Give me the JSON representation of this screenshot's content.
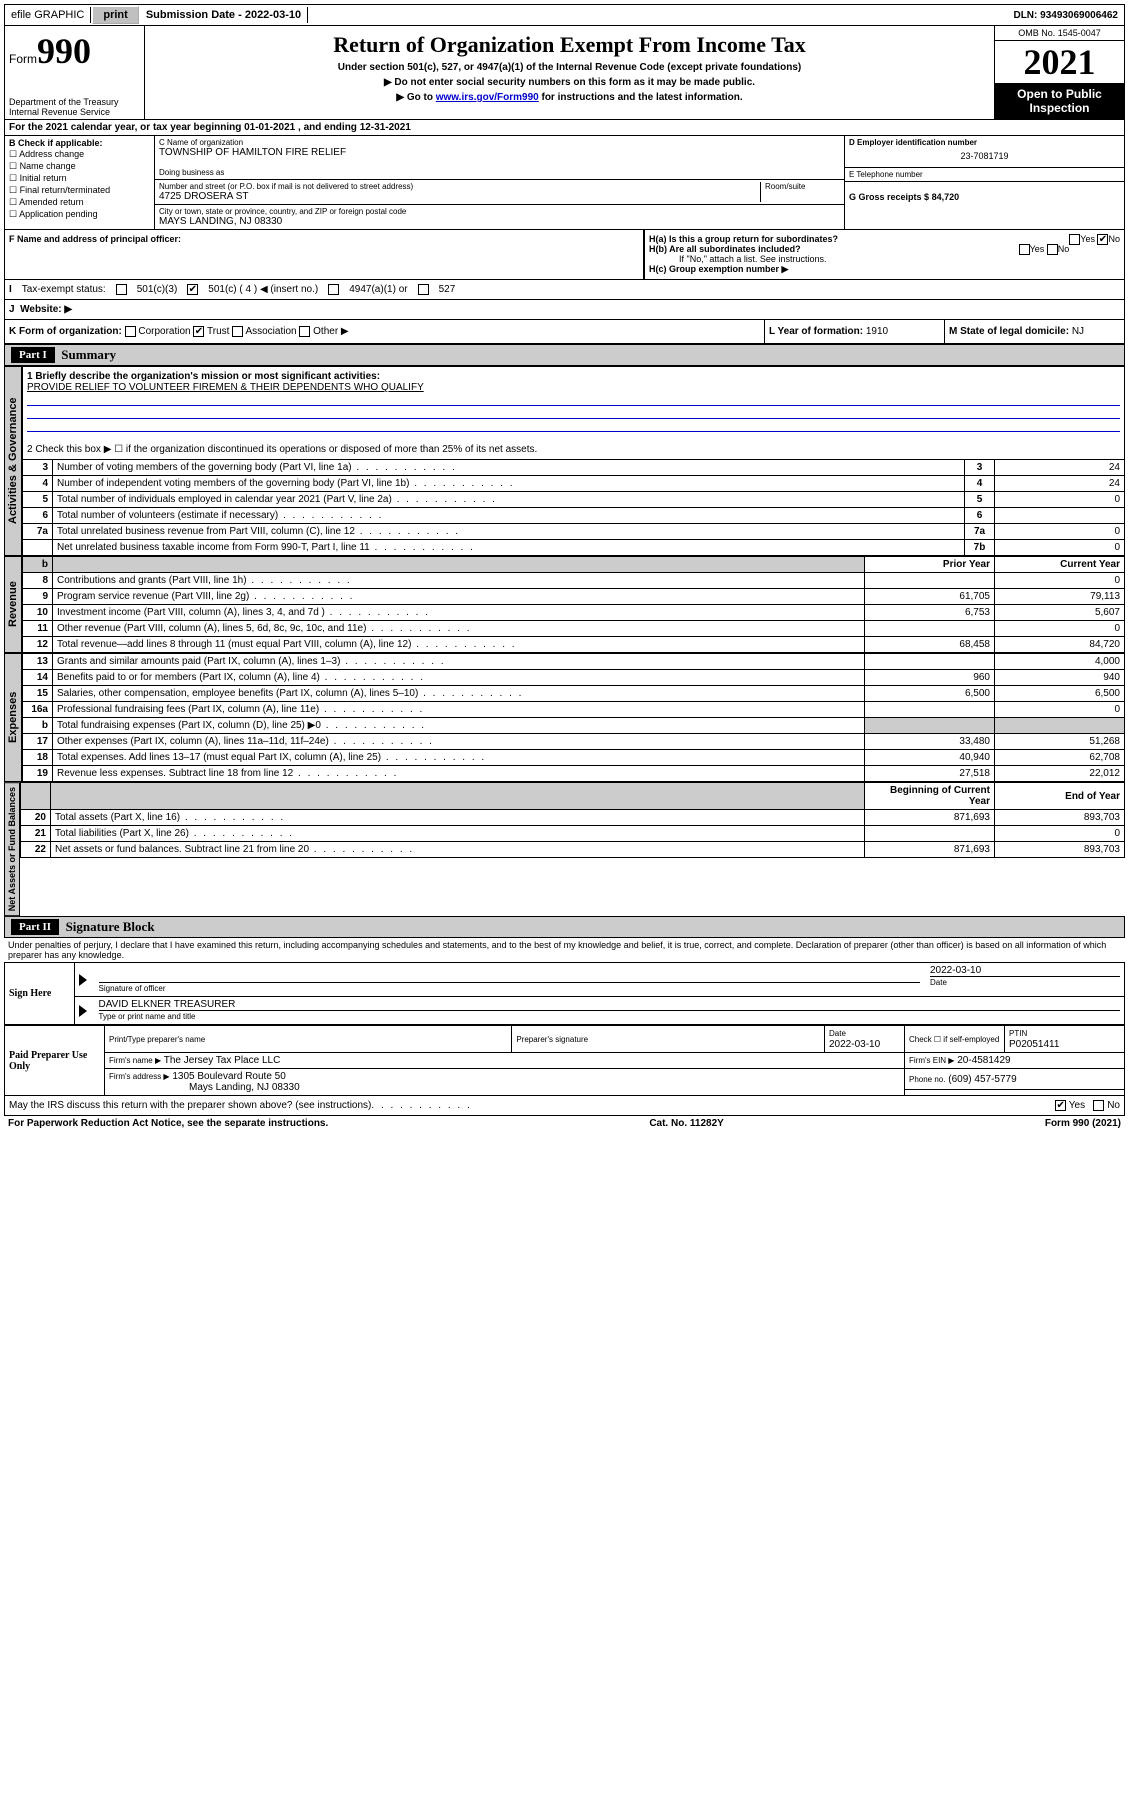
{
  "topbar": {
    "efile": "efile GRAPHIC",
    "print": "print",
    "sub_label": "Submission Date - 2022-03-10",
    "dln": "DLN: 93493069006462"
  },
  "header": {
    "form_prefix": "Form",
    "form_no": "990",
    "dept": "Department of the Treasury",
    "irs": "Internal Revenue Service",
    "title": "Return of Organization Exempt From Income Tax",
    "sub1": "Under section 501(c), 527, or 4947(a)(1) of the Internal Revenue Code (except private foundations)",
    "sub2": "▶ Do not enter social security numbers on this form as it may be made public.",
    "sub3_pre": "▶ Go to ",
    "sub3_link": "www.irs.gov/Form990",
    "sub3_post": " for instructions and the latest information.",
    "omb": "OMB No. 1545-0047",
    "year": "2021",
    "open": "Open to Public Inspection"
  },
  "line_a": {
    "text": "For the 2021 calendar year, or tax year beginning 01-01-2021   , and ending 12-31-2021"
  },
  "section_b": {
    "title": "B Check if applicable:",
    "opts": [
      "Address change",
      "Name change",
      "Initial return",
      "Final return/terminated",
      "Amended return",
      "Application pending"
    ]
  },
  "section_c": {
    "name_label": "C Name of organization",
    "name": "TOWNSHIP OF HAMILTON FIRE RELIEF",
    "dba_label": "Doing business as",
    "dba": "",
    "street_label": "Number and street (or P.O. box if mail is not delivered to street address)",
    "room_label": "Room/suite",
    "street": "4725 DROSERA ST",
    "city_label": "City or town, state or province, country, and ZIP or foreign postal code",
    "city": "MAYS LANDING, NJ  08330"
  },
  "section_d": {
    "label": "D Employer identification number",
    "ein": "23-7081719",
    "e_label": "E Telephone number",
    "phone": "",
    "g_label": "G Gross receipts $",
    "g_val": "84,720"
  },
  "section_f": {
    "label": "F Name and address of principal officer:",
    "val": ""
  },
  "section_h": {
    "ha": "H(a)  Is this a group return for subordinates?",
    "hb": "H(b)  Are all subordinates included?",
    "hb_note": "If \"No,\" attach a list. See instructions.",
    "hc": "H(c)  Group exemption number ▶",
    "yes": "Yes",
    "no": "No"
  },
  "section_i": {
    "label": "Tax-exempt status:",
    "o501c3": "501(c)(3)",
    "o501c": "501(c) ( 4 ) ◀ (insert no.)",
    "o4947": "4947(a)(1) or",
    "o527": "527"
  },
  "section_j": {
    "label": "Website: ▶",
    "val": ""
  },
  "section_k": {
    "label": "K Form of organization:",
    "opts": [
      "Corporation",
      "Trust",
      "Association",
      "Other ▶"
    ]
  },
  "section_l": {
    "label": "L Year of formation:",
    "val": "1910"
  },
  "section_m": {
    "label": "M State of legal domicile:",
    "val": "NJ"
  },
  "part1": {
    "hdr": "Part I",
    "title": "Summary",
    "line1_label": "1  Briefly describe the organization's mission or most significant activities:",
    "line1_val": "PROVIDE RELIEF TO VOLUNTEER FIREMEN & THEIR DEPENDENTS WHO QUALIFY",
    "line2": "2   Check this box ▶ ☐  if the organization discontinued its operations or disposed of more than 25% of its net assets.",
    "rows_gov": [
      {
        "n": "3",
        "t": "Number of voting members of the governing body (Part VI, line 1a)",
        "box": "3",
        "v": "24"
      },
      {
        "n": "4",
        "t": "Number of independent voting members of the governing body (Part VI, line 1b)",
        "box": "4",
        "v": "24"
      },
      {
        "n": "5",
        "t": "Total number of individuals employed in calendar year 2021 (Part V, line 2a)",
        "box": "5",
        "v": "0"
      },
      {
        "n": "6",
        "t": "Total number of volunteers (estimate if necessary)",
        "box": "6",
        "v": ""
      },
      {
        "n": "7a",
        "t": "Total unrelated business revenue from Part VIII, column (C), line 12",
        "box": "7a",
        "v": "0"
      },
      {
        "n": "",
        "t": "Net unrelated business taxable income from Form 990-T, Part I, line 11",
        "box": "7b",
        "v": "0"
      }
    ],
    "col_prior": "Prior Year",
    "col_current": "Current Year",
    "rows_rev": [
      {
        "n": "8",
        "t": "Contributions and grants (Part VIII, line 1h)",
        "p": "",
        "c": "0"
      },
      {
        "n": "9",
        "t": "Program service revenue (Part VIII, line 2g)",
        "p": "61,705",
        "c": "79,113"
      },
      {
        "n": "10",
        "t": "Investment income (Part VIII, column (A), lines 3, 4, and 7d )",
        "p": "6,753",
        "c": "5,607"
      },
      {
        "n": "11",
        "t": "Other revenue (Part VIII, column (A), lines 5, 6d, 8c, 9c, 10c, and 11e)",
        "p": "",
        "c": "0"
      },
      {
        "n": "12",
        "t": "Total revenue—add lines 8 through 11 (must equal Part VIII, column (A), line 12)",
        "p": "68,458",
        "c": "84,720"
      }
    ],
    "rows_exp": [
      {
        "n": "13",
        "t": "Grants and similar amounts paid (Part IX, column (A), lines 1–3)",
        "p": "",
        "c": "4,000"
      },
      {
        "n": "14",
        "t": "Benefits paid to or for members (Part IX, column (A), line 4)",
        "p": "960",
        "c": "940"
      },
      {
        "n": "15",
        "t": "Salaries, other compensation, employee benefits (Part IX, column (A), lines 5–10)",
        "p": "6,500",
        "c": "6,500"
      },
      {
        "n": "16a",
        "t": "Professional fundraising fees (Part IX, column (A), line 11e)",
        "p": "",
        "c": "0"
      },
      {
        "n": "b",
        "t": "Total fundraising expenses (Part IX, column (D), line 25) ▶0",
        "p": "shade",
        "c": "shade"
      },
      {
        "n": "17",
        "t": "Other expenses (Part IX, column (A), lines 11a–11d, 11f–24e)",
        "p": "33,480",
        "c": "51,268"
      },
      {
        "n": "18",
        "t": "Total expenses. Add lines 13–17 (must equal Part IX, column (A), line 25)",
        "p": "40,940",
        "c": "62,708"
      },
      {
        "n": "19",
        "t": "Revenue less expenses. Subtract line 18 from line 12",
        "p": "27,518",
        "c": "22,012"
      }
    ],
    "col_begin": "Beginning of Current Year",
    "col_end": "End of Year",
    "rows_net": [
      {
        "n": "20",
        "t": "Total assets (Part X, line 16)",
        "p": "871,693",
        "c": "893,703"
      },
      {
        "n": "21",
        "t": "Total liabilities (Part X, line 26)",
        "p": "",
        "c": "0"
      },
      {
        "n": "22",
        "t": "Net assets or fund balances. Subtract line 21 from line 20",
        "p": "871,693",
        "c": "893,703"
      }
    ],
    "vtab_gov": "Activities & Governance",
    "vtab_rev": "Revenue",
    "vtab_exp": "Expenses",
    "vtab_net": "Net Assets or Fund Balances"
  },
  "part2": {
    "hdr": "Part II",
    "title": "Signature Block",
    "perjury": "Under penalties of perjury, I declare that I have examined this return, including accompanying schedules and statements, and to the best of my knowledge and belief, it is true, correct, and complete. Declaration of preparer (other than officer) is based on all information of which preparer has any knowledge.",
    "sign_here": "Sign Here",
    "sig_officer": "Signature of officer",
    "sig_date": "Date",
    "sig_date_val": "2022-03-10",
    "officer_name": "DAVID ELKNER  TREASURER",
    "type_name": "Type or print name and title",
    "paid": "Paid Preparer Use Only",
    "prep_name_label": "Print/Type preparer's name",
    "prep_sig_label": "Preparer's signature",
    "prep_date_label": "Date",
    "prep_date": "2022-03-10",
    "check_if": "Check ☐ if self-employed",
    "ptin_label": "PTIN",
    "ptin": "P02051411",
    "firm_name_label": "Firm's name    ▶",
    "firm_name": "The Jersey Tax Place LLC",
    "firm_ein_label": "Firm's EIN ▶",
    "firm_ein": "20-4581429",
    "firm_addr_label": "Firm's address ▶",
    "firm_addr1": "1305 Boulevard Route 50",
    "firm_addr2": "Mays Landing, NJ  08330",
    "phone_label": "Phone no.",
    "phone": "(609) 457-5779",
    "may_irs": "May the IRS discuss this return with the preparer shown above? (see instructions)",
    "yes": "Yes",
    "no": "No"
  },
  "footer": {
    "left": "For Paperwork Reduction Act Notice, see the separate instructions.",
    "mid": "Cat. No. 11282Y",
    "right": "Form 990 (2021)"
  }
}
